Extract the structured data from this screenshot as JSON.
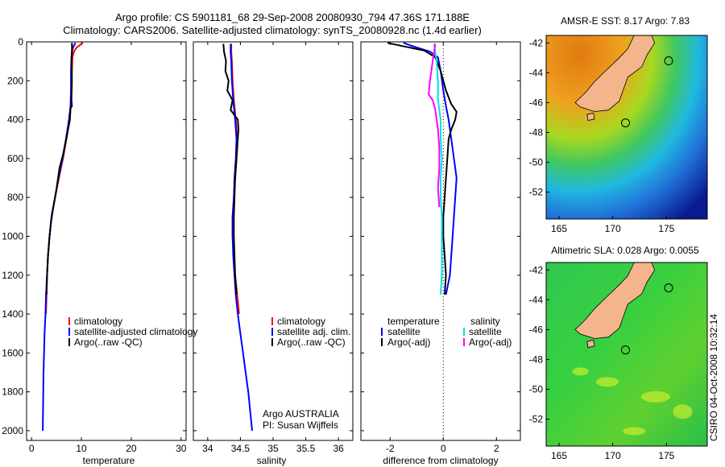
{
  "header": {
    "line1": "Argo profile: CS 5901181_68 29-Sep-2008 20080930_794 47.36S 171.188E",
    "line2": "Climatology: CARS2006. Satellite-adjusted climatology: synTS_20080928.nc (1.4d earlier)"
  },
  "side_label": "CSIRO 04-Oct-2008 10:32:14",
  "colors": {
    "climatology": "#ff0000",
    "satellite": "#0000ff",
    "argo": "#000000",
    "salinity_satellite": "#00e0e0",
    "salinity_argo": "#ff00ff",
    "land": "#f4b58c"
  },
  "chart_data": [
    {
      "type": "line",
      "id": "temperature",
      "xlabel": "temperature",
      "xlim": [
        -1,
        31
      ],
      "xticks": [
        0,
        10,
        20,
        30
      ],
      "ylim": [
        2050,
        0
      ],
      "yticks": [
        0,
        200,
        400,
        600,
        800,
        1000,
        1200,
        1400,
        1600,
        1800,
        2000
      ],
      "legend": [
        "climatology",
        "satellite-adjusted climatology",
        "Argo(..raw -QC)"
      ],
      "series": [
        {
          "name": "climatology",
          "color": "#ff0000",
          "points": [
            [
              10.3,
              5
            ],
            [
              9.8,
              15
            ],
            [
              9.0,
              30
            ],
            [
              8.5,
              50
            ],
            [
              8.2,
              80
            ],
            [
              8.1,
              150
            ],
            [
              8.0,
              250
            ],
            [
              7.9,
              330
            ],
            [
              7.6,
              400
            ],
            [
              7.0,
              500
            ],
            [
              6.3,
              600
            ],
            [
              5.5,
              700
            ],
            [
              4.7,
              800
            ],
            [
              4.0,
              900
            ],
            [
              3.6,
              1000
            ],
            [
              3.3,
              1100
            ],
            [
              3.1,
              1200
            ],
            [
              3.0,
              1300
            ],
            [
              2.9,
              1400
            ]
          ]
        },
        {
          "name": "satellite-adjusted climatology",
          "color": "#0000ff",
          "points": [
            [
              8.8,
              5
            ],
            [
              8.6,
              15
            ],
            [
              8.3,
              30
            ],
            [
              8.1,
              50
            ],
            [
              8.0,
              80
            ],
            [
              7.9,
              150
            ],
            [
              7.9,
              250
            ],
            [
              7.8,
              330
            ],
            [
              7.5,
              400
            ],
            [
              6.9,
              500
            ],
            [
              6.2,
              600
            ],
            [
              5.4,
              700
            ],
            [
              4.7,
              800
            ],
            [
              4.0,
              900
            ],
            [
              3.6,
              1000
            ],
            [
              3.3,
              1100
            ],
            [
              3.1,
              1200
            ],
            [
              2.9,
              1300
            ],
            [
              2.8,
              1400
            ],
            [
              2.6,
              1500
            ],
            [
              2.5,
              1600
            ],
            [
              2.4,
              1700
            ],
            [
              2.35,
              1800
            ],
            [
              2.3,
              1900
            ],
            [
              2.25,
              2000
            ]
          ]
        },
        {
          "name": "Argo(..raw -QC)",
          "color": "#000000",
          "points": [
            [
              8.1,
              5
            ],
            [
              8.1,
              50
            ],
            [
              8.0,
              100
            ],
            [
              8.1,
              200
            ],
            [
              8.0,
              300
            ],
            [
              8.1,
              330
            ],
            [
              7.8,
              340
            ],
            [
              7.7,
              400
            ],
            [
              7.1,
              480
            ],
            [
              6.4,
              570
            ],
            [
              5.6,
              650
            ],
            [
              5.2,
              720
            ],
            [
              4.8,
              790
            ],
            [
              4.3,
              860
            ],
            [
              3.9,
              930
            ],
            [
              3.6,
              1000
            ],
            [
              3.3,
              1100
            ],
            [
              3.1,
              1200
            ],
            [
              3.0,
              1300
            ]
          ]
        }
      ]
    },
    {
      "type": "line",
      "id": "salinity",
      "xlabel": "salinity",
      "xlim": [
        33.78,
        36.22
      ],
      "xticks": [
        34,
        34.5,
        35,
        35.5,
        36
      ],
      "xtick_labels": [
        "34",
        "34.5",
        "35",
        "35.5",
        "36"
      ],
      "ylim": [
        2050,
        0
      ],
      "legend": [
        "climatology",
        "satellite adj. clim.",
        "Argo(..raw -QC)"
      ],
      "annotation": [
        "Argo AUSTRALIA",
        "PI: Susan Wijffels"
      ],
      "series": [
        {
          "name": "climatology",
          "color": "#ff0000",
          "points": [
            [
              34.36,
              10
            ],
            [
              34.36,
              50
            ],
            [
              34.37,
              100
            ],
            [
              34.38,
              200
            ],
            [
              34.4,
              300
            ],
            [
              34.43,
              400
            ],
            [
              34.45,
              500
            ],
            [
              34.44,
              600
            ],
            [
              34.42,
              700
            ],
            [
              34.4,
              800
            ],
            [
              34.38,
              900
            ],
            [
              34.38,
              1000
            ],
            [
              34.4,
              1100
            ],
            [
              34.42,
              1200
            ],
            [
              34.45,
              1300
            ],
            [
              34.48,
              1400
            ]
          ]
        },
        {
          "name": "satellite adj. clim.",
          "color": "#0000ff",
          "points": [
            [
              34.35,
              10
            ],
            [
              34.35,
              50
            ],
            [
              34.36,
              100
            ],
            [
              34.37,
              200
            ],
            [
              34.39,
              300
            ],
            [
              34.42,
              400
            ],
            [
              34.44,
              500
            ],
            [
              34.43,
              600
            ],
            [
              34.41,
              700
            ],
            [
              34.4,
              800
            ],
            [
              34.38,
              900
            ],
            [
              34.38,
              1000
            ],
            [
              34.39,
              1100
            ],
            [
              34.41,
              1200
            ],
            [
              34.43,
              1300
            ],
            [
              34.46,
              1400
            ],
            [
              34.5,
              1500
            ],
            [
              34.54,
              1600
            ],
            [
              34.58,
              1700
            ],
            [
              34.62,
              1800
            ],
            [
              34.65,
              1900
            ],
            [
              34.68,
              2000
            ]
          ]
        },
        {
          "name": "Argo(..raw -QC)",
          "color": "#000000",
          "points": [
            [
              34.24,
              10
            ],
            [
              34.25,
              50
            ],
            [
              34.28,
              100
            ],
            [
              34.27,
              150
            ],
            [
              34.32,
              200
            ],
            [
              34.3,
              250
            ],
            [
              34.38,
              300
            ],
            [
              34.35,
              350
            ],
            [
              34.46,
              400
            ],
            [
              34.47,
              450
            ],
            [
              34.46,
              500
            ],
            [
              34.44,
              600
            ],
            [
              34.42,
              700
            ],
            [
              34.41,
              800
            ],
            [
              34.4,
              900
            ],
            [
              34.4,
              1000
            ],
            [
              34.41,
              1100
            ],
            [
              34.42,
              1200
            ],
            [
              34.44,
              1300
            ]
          ]
        }
      ]
    },
    {
      "type": "line",
      "id": "difference",
      "xlabel": "difference from climatology",
      "xlim": [
        -3.1,
        2.9
      ],
      "xticks": [
        -2,
        0,
        2
      ],
      "ylim": [
        2050,
        0
      ],
      "zero_line": true,
      "legend_headers": [
        "temperature",
        "salinity"
      ],
      "legend": [
        "satellite",
        "Argo(-adj)",
        "satellite",
        "Argo(-adj)"
      ],
      "series": [
        {
          "name": "temperature satellite",
          "color": "#0000ff",
          "points": [
            [
              -1.5,
              5
            ],
            [
              -1.2,
              20
            ],
            [
              -0.5,
              50
            ],
            [
              -0.2,
              80
            ],
            [
              -0.1,
              150
            ],
            [
              0.0,
              250
            ],
            [
              0.1,
              330
            ],
            [
              0.2,
              400
            ],
            [
              0.3,
              500
            ],
            [
              0.4,
              600
            ],
            [
              0.5,
              700
            ],
            [
              0.45,
              800
            ],
            [
              0.4,
              900
            ],
            [
              0.35,
              1000
            ],
            [
              0.3,
              1100
            ],
            [
              0.25,
              1200
            ],
            [
              0.1,
              1300
            ]
          ]
        },
        {
          "name": "temperature Argo(-adj)",
          "color": "#000000",
          "points": [
            [
              -2.1,
              5
            ],
            [
              -1.6,
              20
            ],
            [
              -0.7,
              45
            ],
            [
              -0.3,
              80
            ],
            [
              -0.1,
              150
            ],
            [
              0.1,
              250
            ],
            [
              0.3,
              320
            ],
            [
              0.5,
              360
            ],
            [
              0.45,
              400
            ],
            [
              0.3,
              450
            ],
            [
              0.2,
              500
            ],
            [
              0.15,
              600
            ],
            [
              0.1,
              700
            ],
            [
              0.05,
              800
            ],
            [
              0.0,
              900
            ],
            [
              0.0,
              1000
            ],
            [
              0.05,
              1100
            ],
            [
              0.1,
              1200
            ],
            [
              0.05,
              1300
            ]
          ]
        },
        {
          "name": "salinity satellite",
          "color": "#00e0e0",
          "points": [
            [
              -0.35,
              10
            ],
            [
              -0.3,
              50
            ],
            [
              -0.25,
              100
            ],
            [
              -0.2,
              200
            ],
            [
              -0.2,
              300
            ],
            [
              -0.1,
              400
            ],
            [
              -0.1,
              500
            ],
            [
              -0.05,
              600
            ],
            [
              -0.1,
              700
            ],
            [
              -0.1,
              800
            ],
            [
              -0.05,
              900
            ],
            [
              -0.05,
              1000
            ],
            [
              -0.05,
              1100
            ],
            [
              -0.05,
              1200
            ],
            [
              -0.1,
              1300
            ]
          ]
        },
        {
          "name": "salinity Argo(-adj)",
          "color": "#ff00ff",
          "points": [
            [
              -0.3,
              10
            ],
            [
              -0.4,
              100
            ],
            [
              -0.5,
              200
            ],
            [
              -0.55,
              270
            ],
            [
              -0.4,
              300
            ],
            [
              -0.3,
              350
            ],
            [
              -0.2,
              450
            ],
            [
              -0.15,
              550
            ],
            [
              -0.15,
              650
            ],
            [
              -0.2,
              750
            ],
            [
              -0.15,
              850
            ]
          ]
        }
      ]
    },
    {
      "type": "heatmap",
      "id": "sst_map",
      "title": "AMSR-E SST: 8.17 Argo: 7.83",
      "xticks": [
        165,
        170,
        175
      ],
      "yticks": [
        -42,
        -44,
        -46,
        -48,
        -50,
        -52
      ],
      "xlim": [
        163.8,
        178.8
      ],
      "ylim": [
        -53.8,
        -41.5
      ],
      "argo_position": {
        "lon": 171.188,
        "lat": -47.36
      }
    },
    {
      "type": "heatmap",
      "id": "sla_map",
      "title": "Altimetric SLA: 0.028 Argo: 0.0055",
      "xticks": [
        165,
        170,
        175
      ],
      "yticks": [
        -42,
        -44,
        -46,
        -48,
        -50,
        -52
      ],
      "xlim": [
        163.8,
        178.8
      ],
      "ylim": [
        -53.8,
        -41.5
      ],
      "argo_position": {
        "lon": 171.188,
        "lat": -47.36
      }
    }
  ]
}
